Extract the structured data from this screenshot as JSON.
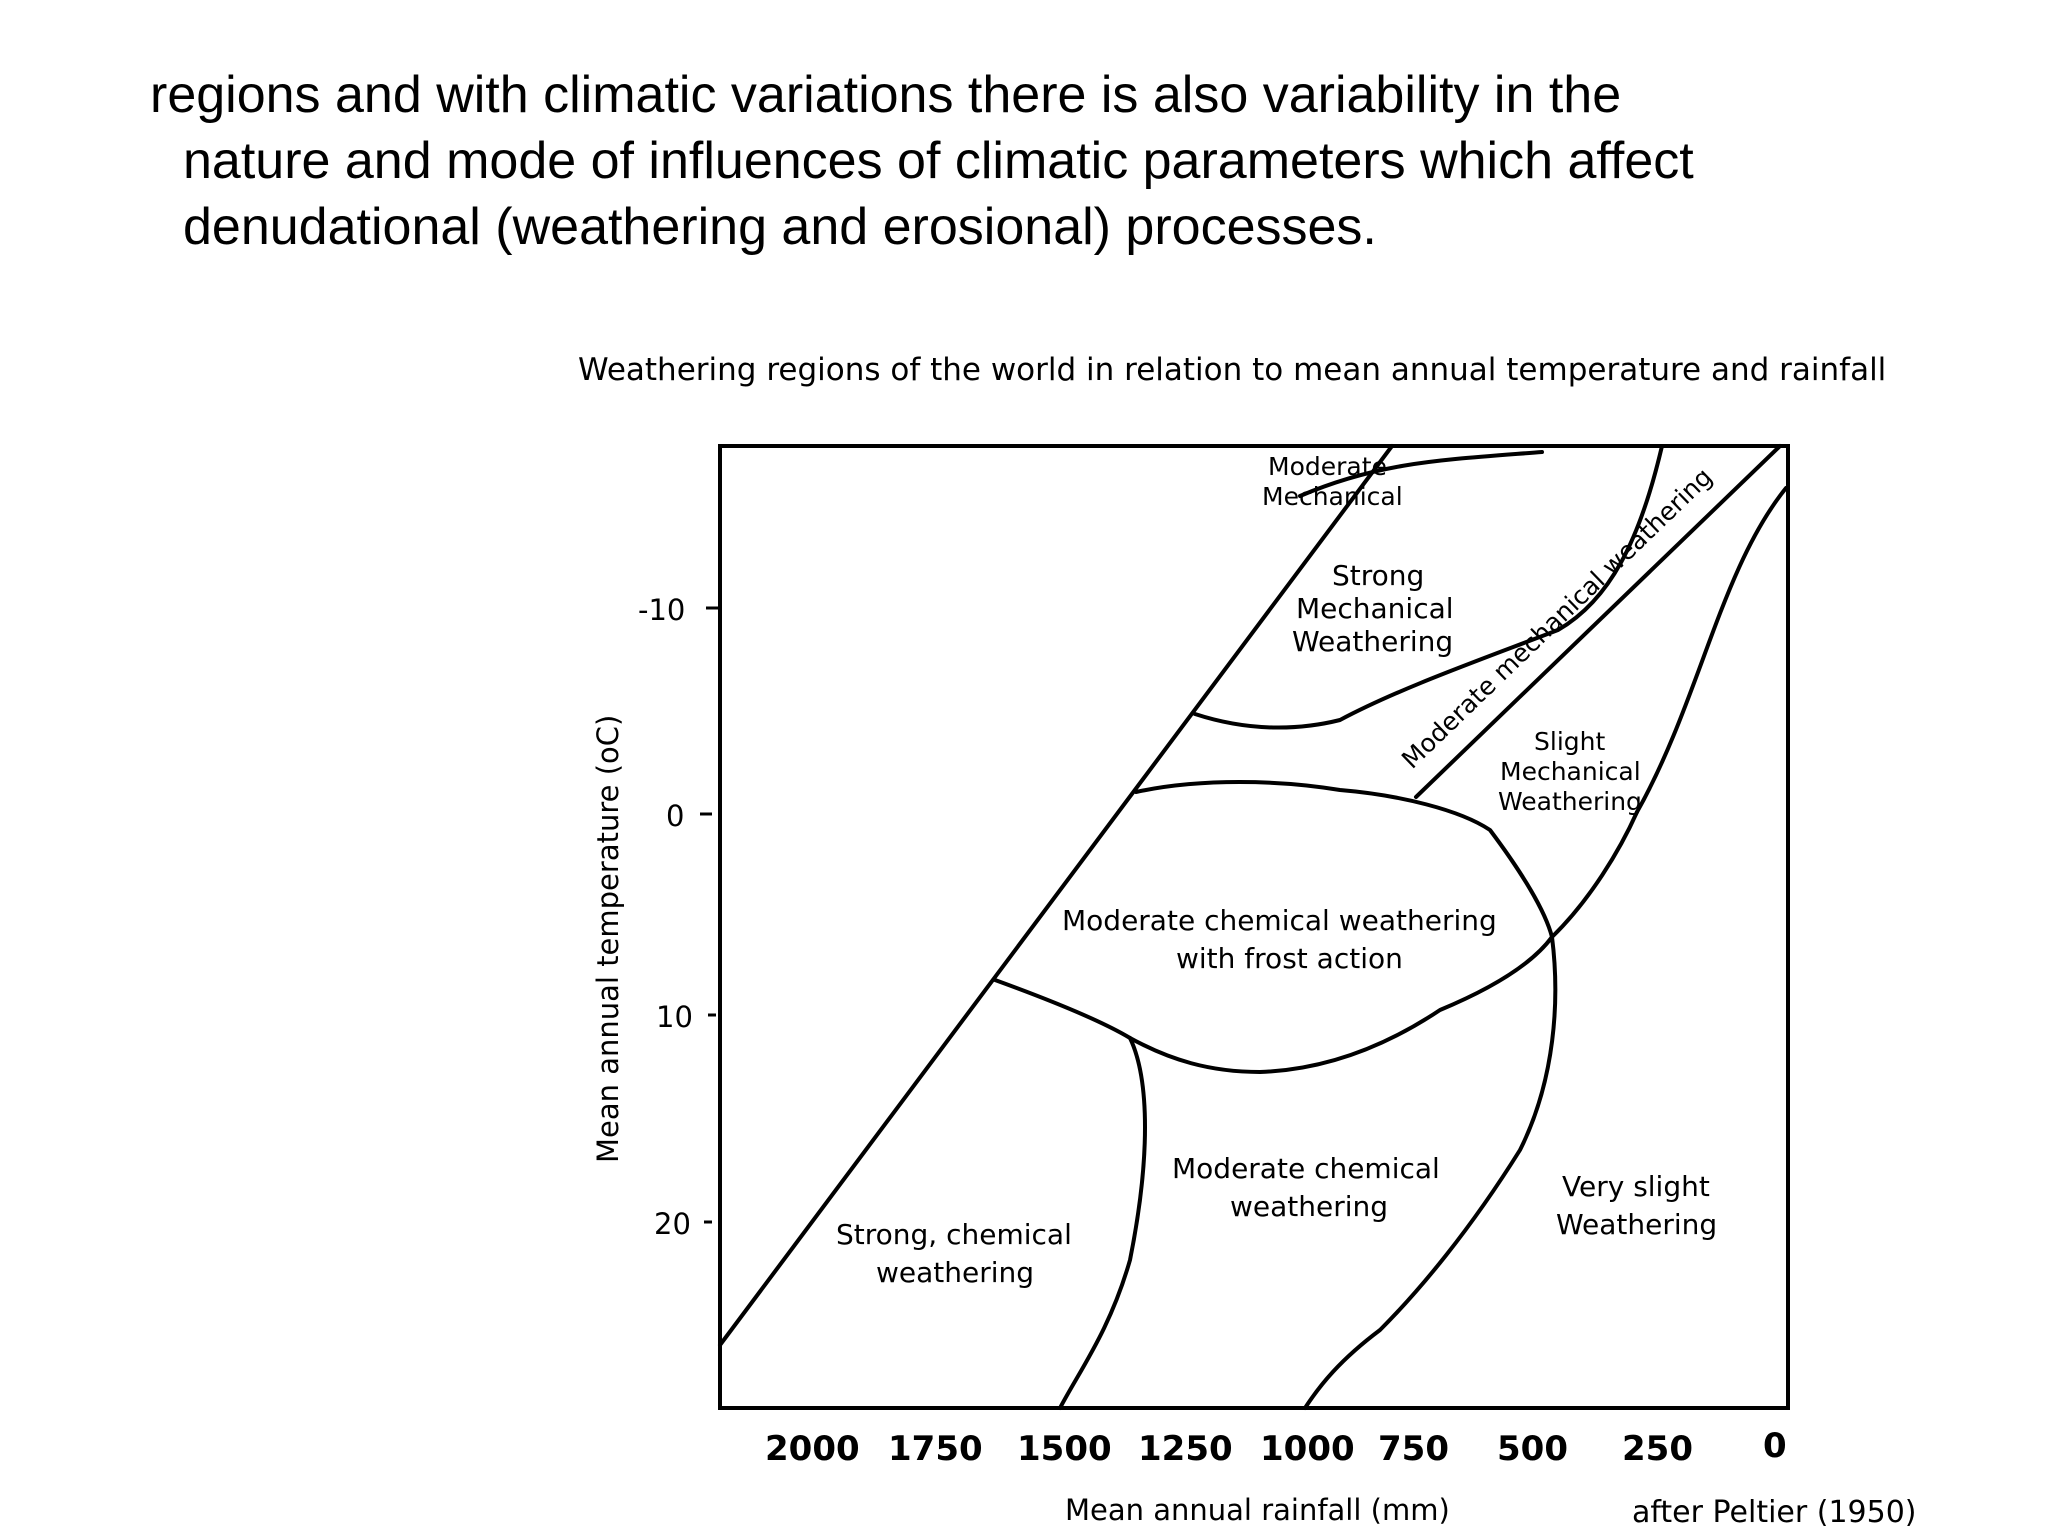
{
  "slide": {
    "paragraph": [
      "regions and with climatic variations there is also variability in the",
      "nature and mode of influences of climatic parameters which affect",
      "denudational (weathering and erosional) processes."
    ]
  },
  "diagram": {
    "title": "Weathering regions of the world in relation to mean annual temperature and rainfall",
    "y_axis_label": "Mean annual temperature (oC)",
    "x_axis_label": "Mean annual rainfall (mm)",
    "y_ticks": [
      "-10",
      "0",
      "10",
      "20"
    ],
    "x_ticks": [
      "2000",
      "1750",
      "1500",
      "1250",
      "1000",
      "750",
      "500",
      "250",
      "0"
    ],
    "credit": "after Peltier (1950)",
    "regions": {
      "moderate_mechanical": [
        "Moderate",
        "Mechanical"
      ],
      "strong_mechanical": [
        "Strong",
        "Mechanical",
        "Weathering"
      ],
      "moderate_mechanical_weathering": "Moderate mechanical weathering",
      "slight_mechanical": [
        "Slight",
        "Mechanical",
        "Weathering"
      ],
      "moderate_chemical_frost": [
        "Moderate chemical weathering",
        "with frost action"
      ],
      "moderate_chemical": [
        "Moderate chemical",
        "weathering"
      ],
      "very_slight": [
        "Very slight",
        "Weathering"
      ],
      "strong_chemical": [
        "Strong, chemical",
        "weathering"
      ]
    }
  }
}
